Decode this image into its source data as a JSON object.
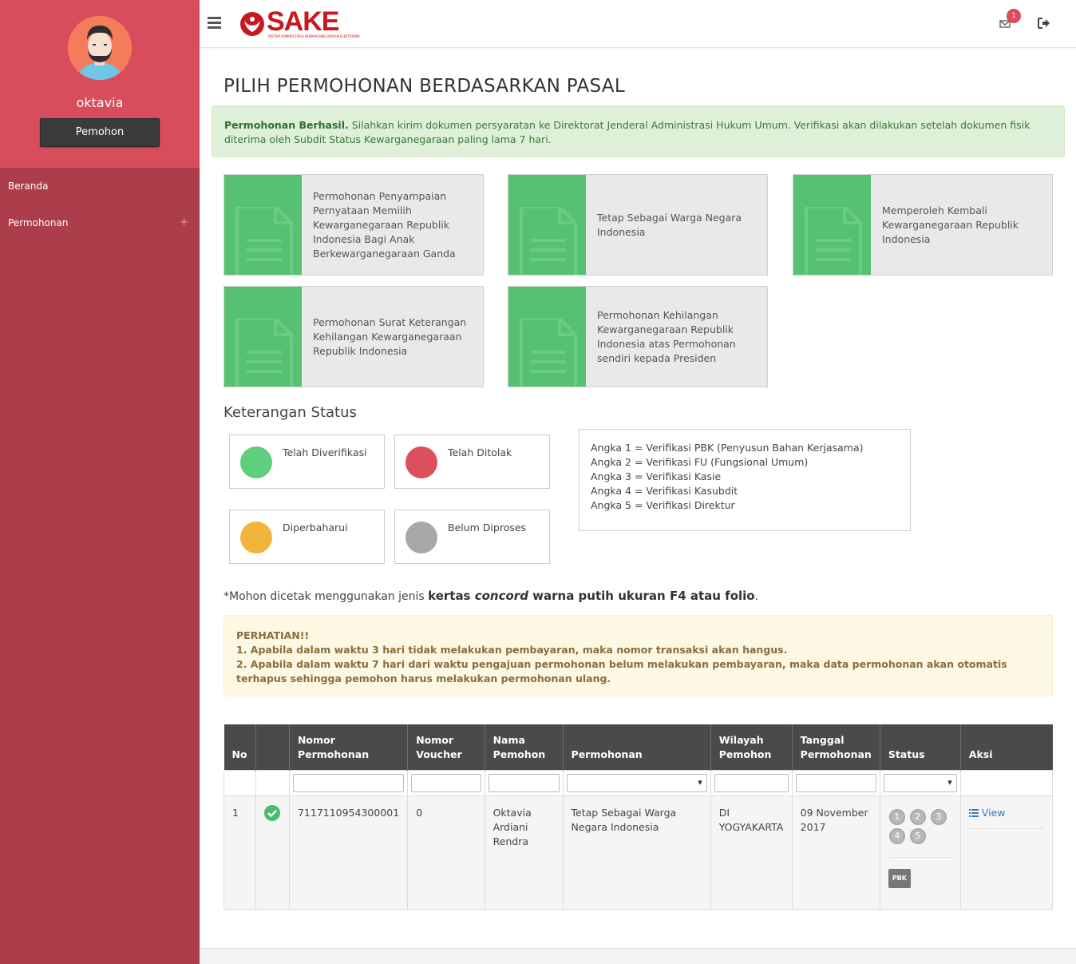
{
  "sidebar": {
    "username": "oktavia",
    "role": "Pemohon",
    "items": [
      {
        "label": "Beranda"
      },
      {
        "label": "Permohonan",
        "expand": "+"
      }
    ]
  },
  "header": {
    "logo_text": "SAKE",
    "logo_subtitle": "SISTEM ADMINISTRASI KEWARGANEGARAAN ELEKTRONIK",
    "notifications": "1"
  },
  "main": {
    "title": "PILIH PERMOHONAN BERDASARKAN PASAL",
    "success_alert": {
      "strong": "Permohonan Berhasil.",
      "text": " Silahkan kirim dokumen persyaratan ke Direktorat Jenderal Administrasi Hukum Umum. Verifikasi akan dilakukan setelah dokumen fisik diterima oleh Subdit Status Kewarganegaraan paling lama 7 hari."
    },
    "cards": [
      {
        "label": "Permohonan Penyampaian Pernyataan Memilih Kewarganegaraan Republik Indonesia Bagi Anak Berkewarganegaraan Ganda"
      },
      {
        "label": "Tetap Sebagai Warga Negara Indonesia"
      },
      {
        "label": "Memperoleh Kembali Kewarganegaraan Republik Indonesia"
      },
      {
        "label": "Permohonan Surat Keterangan Kehilangan Kewarganegaraan Republik Indonesia"
      },
      {
        "label": "Permohonan Kehilangan Kewarganegaraan Republik Indonesia atas Permohonan sendiri kepada Presiden"
      }
    ],
    "status_title": "Keterangan Status",
    "statuses": [
      {
        "label": "Telah Diverifikasi",
        "color": "#5ecf7c"
      },
      {
        "label": "Telah Ditolak",
        "color": "#dd4f5c"
      },
      {
        "label": "Diperbaharui",
        "color": "#f2b53b"
      },
      {
        "label": "Belum Diproses",
        "color": "#a8a8a8"
      }
    ],
    "legend": [
      "Angka 1 = Verifikasi PBK (Penyusun Bahan Kerjasama)",
      "Angka 2 = Verifikasi FU (Fungsional Umum)",
      "Angka 3 = Verifikasi Kasie",
      "Angka 4 = Verifikasi Kasubdit",
      "Angka 5 = Verifikasi Direktur"
    ],
    "note": {
      "prefix": "*Mohon dicetak menggunakan jenis ",
      "bold1": "kertas ",
      "italic": "concord",
      "bold2": " warna putih ukuran F4 atau folio",
      "suffix": "."
    },
    "warning": {
      "title": "PERHATIAN!!",
      "line1": "1. Apabila dalam waktu 3 hari tidak melakukan pembayaran, maka nomor transaksi akan hangus.",
      "line2": "2. Apabila dalam waktu 7 hari dari waktu pengajuan permohonan belum melakukan pembayaran, maka data permohonan akan otomatis terhapus sehingga pemohon harus melakukan permohonan ulang."
    }
  },
  "table": {
    "headers": [
      "No",
      "",
      "Nomor Permohonan",
      "Nomor Voucher",
      "Nama Pemohon",
      "Permohonan",
      "Wilayah Pemohon",
      "Tanggal Permohonan",
      "Status",
      "Aksi"
    ],
    "rows": [
      {
        "no": "1",
        "nomor_permohonan": "7117110954300001",
        "nomor_voucher": "0",
        "nama": "Oktavia Ardiani Rendra",
        "permohonan": "Tetap Sebagai Warga Negara Indonesia",
        "wilayah": "DI YOGYAKARTA",
        "tanggal": "09 November 2017",
        "steps": [
          "1",
          "2",
          "3",
          "4",
          "5"
        ],
        "stage": "PBK",
        "action": "View"
      }
    ]
  }
}
